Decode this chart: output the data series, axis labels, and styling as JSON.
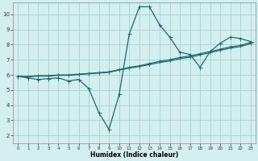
{
  "xlabel": "Humidex (Indice chaleur)",
  "xlim": [
    -0.5,
    23.5
  ],
  "ylim": [
    1.5,
    10.8
  ],
  "xticks": [
    0,
    1,
    2,
    3,
    4,
    5,
    6,
    7,
    8,
    9,
    10,
    11,
    12,
    13,
    14,
    15,
    16,
    17,
    18,
    19,
    20,
    21,
    22,
    23
  ],
  "yticks": [
    2,
    3,
    4,
    5,
    6,
    7,
    8,
    9,
    10
  ],
  "background_color": "#d4efef",
  "grid_color": "#aed4d4",
  "line_color": "#1a6b6b",
  "line1_x": [
    0,
    1,
    2,
    3,
    4,
    5,
    6,
    7,
    8,
    9,
    10,
    11,
    12,
    13,
    14,
    15,
    16,
    17,
    18,
    19,
    20,
    21,
    22,
    23
  ],
  "line1_y": [
    5.9,
    5.8,
    5.7,
    5.75,
    5.8,
    5.6,
    5.7,
    5.1,
    3.5,
    2.4,
    4.7,
    8.7,
    10.5,
    10.5,
    9.3,
    8.5,
    7.5,
    7.35,
    6.5,
    7.55,
    8.1,
    8.5,
    8.4,
    8.2
  ],
  "line2_x": [
    0,
    1,
    2,
    3,
    4,
    5,
    6,
    7,
    8,
    9,
    10,
    11,
    12,
    13,
    14,
    15,
    16,
    17,
    18,
    19,
    20,
    21,
    22,
    23
  ],
  "line2_y": [
    5.9,
    5.9,
    5.95,
    5.95,
    6.0,
    6.0,
    6.05,
    6.1,
    6.15,
    6.2,
    6.35,
    6.5,
    6.6,
    6.75,
    6.9,
    7.0,
    7.15,
    7.25,
    7.4,
    7.55,
    7.7,
    7.85,
    7.95,
    8.15
  ],
  "line3_x": [
    0,
    1,
    2,
    3,
    4,
    5,
    6,
    7,
    8,
    9,
    10,
    11,
    12,
    13,
    14,
    15,
    16,
    17,
    18,
    19,
    20,
    21,
    22,
    23
  ],
  "line3_y": [
    5.9,
    5.88,
    5.92,
    5.92,
    5.97,
    5.97,
    6.02,
    6.07,
    6.12,
    6.17,
    6.32,
    6.45,
    6.55,
    6.68,
    6.82,
    6.92,
    7.07,
    7.17,
    7.32,
    7.47,
    7.62,
    7.77,
    7.87,
    8.07
  ]
}
